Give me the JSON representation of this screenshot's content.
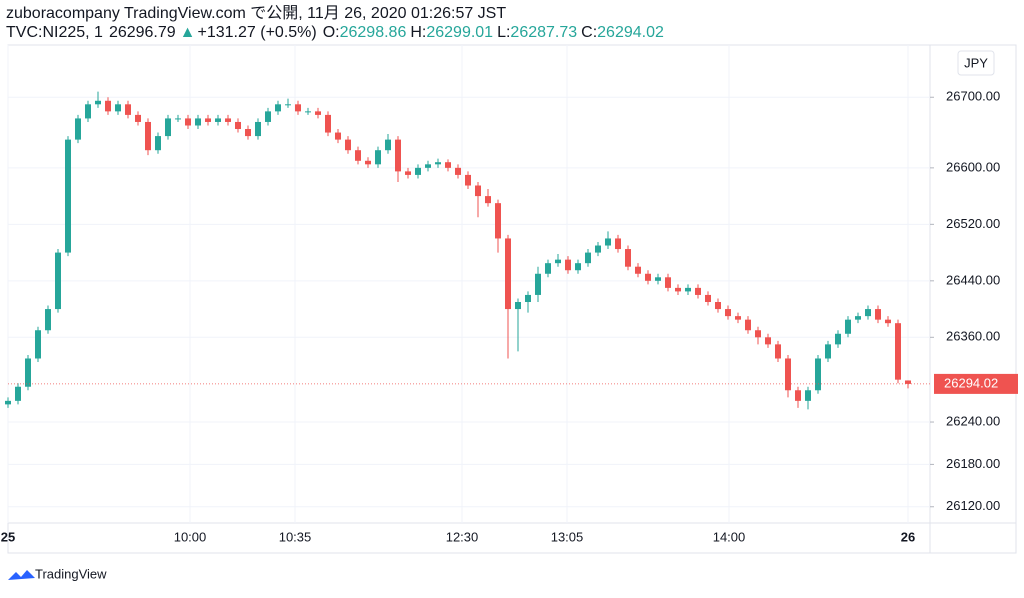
{
  "header": {
    "title": "zuboracompany TradingView.com で公開, 11月 26, 2020 01:26:57 JST",
    "symbol": "TVC:NI225, 1",
    "price": 26296.79,
    "change": "+131.27 (+0.5%)",
    "o_label": "O:",
    "h_label": "H:",
    "l_label": "L:",
    "c_label": "C:"
  },
  "currency": "JPY",
  "footer": "TradingView",
  "chart_data": {
    "type": "candlestick",
    "up_color": "#26a69a",
    "down_color": "#ef5350",
    "grid": true,
    "xlim": [
      0,
      92.2
    ],
    "ylim": [
      26097,
      26774
    ],
    "xticks": [
      {
        "value": 0,
        "label": "25"
      },
      {
        "value": 18.2,
        "label": "10:00"
      },
      {
        "value": 28.7,
        "label": "10:35"
      },
      {
        "value": 45.4,
        "label": "12:30"
      },
      {
        "value": 55.9,
        "label": "13:05"
      },
      {
        "value": 72.1,
        "label": "14:00"
      },
      {
        "value": 90,
        "label": "26"
      }
    ],
    "yticks": [
      {
        "value": 26120,
        "label": "26120.00"
      },
      {
        "value": 26180,
        "label": "26180.00"
      },
      {
        "value": 26240,
        "label": "26240.00"
      },
      {
        "value": 26360,
        "label": "26360.00"
      },
      {
        "value": 26440,
        "label": "26440.00"
      },
      {
        "value": 26520,
        "label": "26520.00"
      },
      {
        "value": 26600,
        "label": "26600.00"
      },
      {
        "value": 26700,
        "label": "26700.00"
      }
    ],
    "open": [
      26265,
      26270,
      26290,
      26330,
      26370,
      26400,
      26480,
      26640,
      26670,
      26690,
      26695,
      26680,
      26690,
      26675,
      26665,
      26625,
      26645,
      26670,
      26670,
      26660,
      26670,
      26665,
      26670,
      26665,
      26655,
      26645,
      26665,
      26680,
      26690,
      26690,
      26680,
      26680,
      26675,
      26650,
      26640,
      26625,
      26610,
      26605,
      26625,
      26640,
      26595,
      26590,
      26600,
      26605,
      26608,
      26600,
      26590,
      26575,
      26560,
      26550,
      26500,
      26400,
      26410,
      26420,
      26450,
      26465,
      26470,
      26455,
      26465,
      26480,
      26490,
      26500,
      26485,
      26460,
      26450,
      26440,
      26445,
      26430,
      26425,
      26430,
      26420,
      26410,
      26400,
      26390,
      26385,
      26370,
      26360,
      26350,
      26330,
      26285,
      26270,
      26285,
      26330,
      26350,
      26365,
      26385,
      26390,
      26400,
      26385,
      26380,
      26298.86
    ],
    "high": [
      26275,
      26295,
      26335,
      26375,
      26405,
      26485,
      26645,
      26675,
      26695,
      26708,
      26700,
      26695,
      26695,
      26680,
      26670,
      26650,
      26675,
      26675,
      26675,
      26675,
      26675,
      26675,
      26675,
      26670,
      26660,
      26670,
      26685,
      26695,
      26698,
      26695,
      26685,
      26685,
      26680,
      26655,
      26645,
      26630,
      26615,
      26630,
      26648,
      26645,
      26600,
      26605,
      26610,
      26613,
      26612,
      26605,
      26595,
      26580,
      26570,
      26555,
      26505,
      26415,
      26425,
      26460,
      26470,
      26478,
      26475,
      26470,
      26485,
      26495,
      26510,
      26505,
      26490,
      26465,
      26455,
      26450,
      26450,
      26435,
      26435,
      26435,
      26425,
      26415,
      26405,
      26395,
      26390,
      26375,
      26365,
      26355,
      26335,
      26290,
      26290,
      26335,
      26355,
      26370,
      26390,
      26395,
      26405,
      26405,
      26390,
      26385,
      26299.01
    ],
    "low": [
      26260,
      26265,
      26285,
      26325,
      26365,
      26395,
      26475,
      26635,
      26665,
      26685,
      26675,
      26675,
      26670,
      26660,
      26618,
      26620,
      26640,
      26665,
      26655,
      26655,
      26660,
      26660,
      26660,
      26650,
      26640,
      26640,
      26660,
      26675,
      26685,
      26675,
      26675,
      26670,
      26645,
      26635,
      26620,
      26605,
      26600,
      26600,
      26620,
      26580,
      26585,
      26585,
      26595,
      26600,
      26595,
      26585,
      26570,
      26530,
      26545,
      26480,
      26330,
      26340,
      26395,
      26410,
      26445,
      26460,
      26450,
      26450,
      26460,
      26475,
      26485,
      26480,
      26455,
      26445,
      26435,
      26435,
      26425,
      26420,
      26420,
      26415,
      26405,
      26395,
      26385,
      26380,
      26365,
      26350,
      26345,
      26325,
      26275,
      26260,
      26258,
      26280,
      26325,
      26345,
      26360,
      26380,
      26385,
      26380,
      26375,
      26295,
      26287.73
    ],
    "close": [
      26270,
      26290,
      26330,
      26370,
      26400,
      26480,
      26640,
      26670,
      26690,
      26695,
      26680,
      26690,
      26675,
      26665,
      26625,
      26645,
      26670,
      26670,
      26660,
      26670,
      26665,
      26670,
      26665,
      26655,
      26645,
      26665,
      26680,
      26690,
      26690,
      26680,
      26680,
      26675,
      26650,
      26640,
      26625,
      26610,
      26605,
      26625,
      26640,
      26595,
      26590,
      26600,
      26605,
      26608,
      26600,
      26590,
      26575,
      26560,
      26550,
      26500,
      26400,
      26410,
      26420,
      26450,
      26465,
      26470,
      26455,
      26465,
      26480,
      26490,
      26500,
      26485,
      26460,
      26450,
      26440,
      26445,
      26430,
      26425,
      26430,
      26420,
      26410,
      26400,
      26390,
      26385,
      26370,
      26360,
      26350,
      26330,
      26285,
      26270,
      26285,
      26330,
      26350,
      26365,
      26385,
      26390,
      26400,
      26385,
      26380,
      26300,
      26294.02
    ]
  }
}
